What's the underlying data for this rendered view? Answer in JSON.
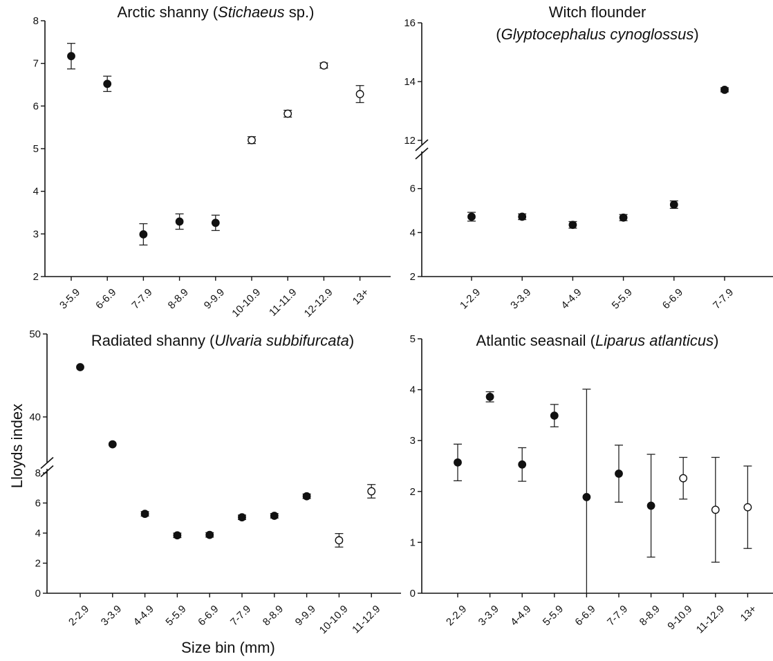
{
  "chart_data": [
    {
      "type": "scatter",
      "panel": "top-left",
      "title": {
        "normal": "Arctic shanny (",
        "italic": "Stichaeus",
        "after": " sp.)"
      },
      "categories": [
        "3-5.9",
        "6-6.9",
        "7-7.9",
        "8-8.9",
        "9-9.9",
        "10-10.9",
        "11-11.9",
        "12-12.9",
        "13+"
      ],
      "values": [
        7.17,
        6.52,
        2.99,
        3.29,
        3.26,
        5.2,
        5.82,
        6.95,
        6.28
      ],
      "error": [
        0.3,
        0.18,
        0.25,
        0.18,
        0.18,
        0.08,
        0.08,
        0.06,
        0.2
      ],
      "filled": [
        true,
        true,
        true,
        true,
        true,
        false,
        false,
        false,
        false
      ],
      "yticks": [
        "2",
        "3",
        "4",
        "5",
        "6",
        "7",
        "8"
      ],
      "ylim": [
        2,
        8
      ]
    },
    {
      "type": "scatter",
      "panel": "top-right",
      "title": {
        "line1": "Witch flounder",
        "normal": "(",
        "italic": "Glyptocephalus cynoglossus",
        "after": ")"
      },
      "categories": [
        "1-2.9",
        "3-3.9",
        "4-4.9",
        "5-5.9",
        "6-6.9",
        "7-7.9"
      ],
      "values": [
        4.72,
        4.72,
        4.35,
        4.68,
        5.27,
        13.72
      ],
      "error": [
        0.2,
        0.13,
        0.15,
        0.14,
        0.17,
        0.07
      ],
      "filled": [
        true,
        true,
        true,
        true,
        true,
        true
      ],
      "axis_break": true,
      "yticks": [
        "2",
        "4",
        "6",
        "12",
        "14",
        "16"
      ],
      "ylim_lower": [
        2,
        7.5
      ],
      "ylim_upper": [
        12,
        16
      ]
    },
    {
      "type": "scatter",
      "panel": "bottom-left",
      "title": {
        "normal": "Radiated shanny (",
        "italic": "Ulvaria subbifurcata",
        "after": ")"
      },
      "categories": [
        "2-2.9",
        "3-3.9",
        "4-4.9",
        "5-5.9",
        "6-6.9",
        "7-7.9",
        "8-8.9",
        "9-9.9",
        "10-10.9",
        "11-12.9"
      ],
      "values": [
        46.0,
        36.7,
        5.28,
        3.85,
        3.88,
        5.05,
        5.15,
        6.45,
        3.52,
        6.78
      ],
      "error": [
        0.15,
        0.15,
        0.15,
        0.15,
        0.15,
        0.15,
        0.15,
        0.15,
        0.45,
        0.45
      ],
      "filled": [
        true,
        true,
        true,
        true,
        true,
        true,
        true,
        true,
        false,
        false
      ],
      "axis_break": true,
      "yticks": [
        "0",
        "2",
        "4",
        "6",
        "8",
        "40",
        "50"
      ],
      "ylim_lower": [
        0,
        8
      ],
      "ylim_upper": [
        35,
        50
      ]
    },
    {
      "type": "scatter",
      "panel": "bottom-right",
      "title": {
        "normal": "Atlantic seasnail (",
        "italic": "Liparus atlanticus",
        "after": ")"
      },
      "categories": [
        "2-2.9",
        "3-3.9",
        "4-4.9",
        "5-5.9",
        "6-6.9",
        "7-7.9",
        "8-8.9",
        "9-10.9",
        "11-12.9",
        "13+"
      ],
      "values": [
        2.57,
        3.86,
        2.53,
        3.49,
        1.89,
        2.35,
        1.72,
        2.26,
        1.64,
        1.69
      ],
      "error": [
        0.36,
        0.1,
        0.33,
        0.22,
        2.12,
        0.56,
        1.01,
        0.41,
        1.03,
        0.81
      ],
      "filled": [
        true,
        true,
        true,
        true,
        true,
        true,
        true,
        false,
        false,
        false
      ],
      "yticks": [
        "0",
        "1",
        "2",
        "3",
        "4",
        "5"
      ],
      "ylim": [
        0,
        5
      ]
    }
  ],
  "shared": {
    "ylabel": "Lloyds index",
    "xlabel": "Size bin (mm)"
  }
}
